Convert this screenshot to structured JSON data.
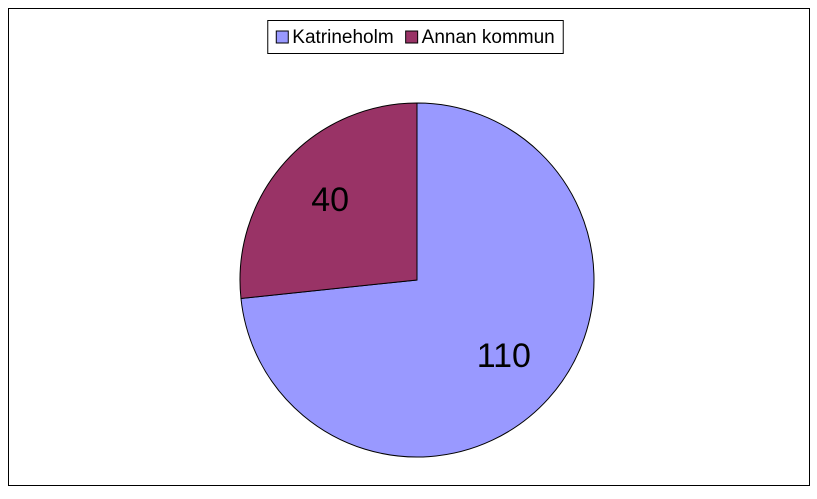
{
  "chart_data": {
    "type": "pie",
    "categories": [
      "Katrineholm",
      "Annan kommun"
    ],
    "values": [
      110,
      40
    ],
    "colors": [
      "#9999ff",
      "#993366"
    ],
    "legend": "top"
  }
}
